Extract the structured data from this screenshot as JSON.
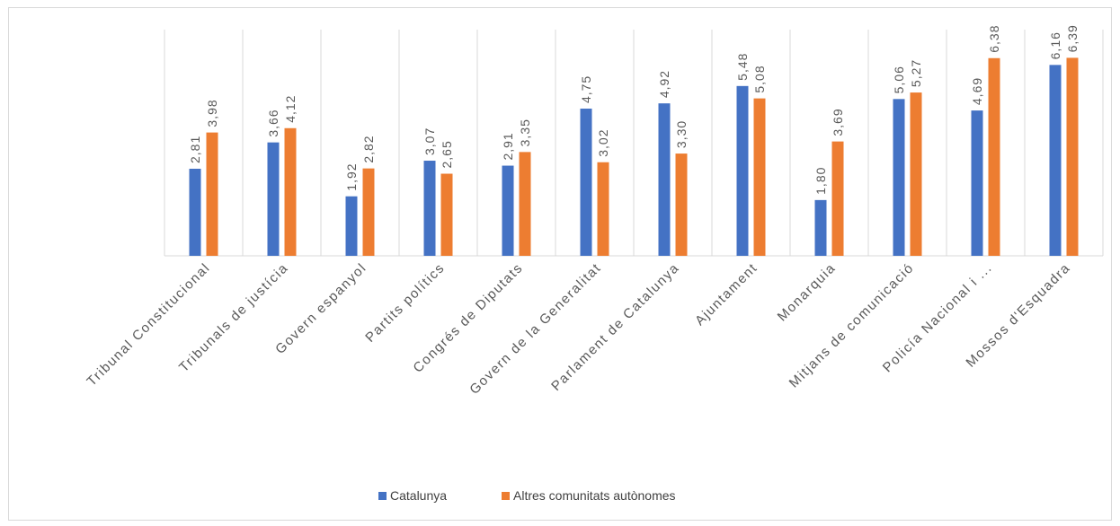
{
  "chart_data": {
    "type": "bar",
    "title": "",
    "xlabel": "",
    "ylabel": "",
    "ylim": [
      0,
      7.3
    ],
    "grid": "vertical separators",
    "legend_position": "bottom",
    "colors": {
      "Catalunya": "#4472c4",
      "Altres comunitats autònomes": "#ed7d31"
    },
    "categories": [
      "Tribunal Constitucional",
      "Tribunals de justícia",
      "Govern espanyol",
      "Partits polítics",
      "Congrés de Diputats",
      "Govern de la Generalitat",
      "Parlament de Catalunya",
      "Ajuntament",
      "Monarquia",
      "Mitjans de comunicació",
      "Policía Nacional i ...",
      "Mossos d'Esquadra"
    ],
    "series": [
      {
        "name": "Catalunya",
        "values": [
          2.81,
          3.66,
          1.92,
          3.07,
          2.91,
          4.75,
          4.92,
          5.48,
          1.8,
          5.06,
          4.69,
          6.16
        ],
        "labels": [
          "2,81",
          "3,66",
          "1,92",
          "3,07",
          "2,91",
          "4,75",
          "4,92",
          "5,48",
          "1,80",
          "5,06",
          "4,69",
          "6,16"
        ]
      },
      {
        "name": "Altres comunitats autònomes",
        "values": [
          3.98,
          4.12,
          2.82,
          2.65,
          3.35,
          3.02,
          3.3,
          5.08,
          3.69,
          5.27,
          6.38,
          6.39
        ],
        "labels": [
          "3,98",
          "4,12",
          "2,82",
          "2,65",
          "3,35",
          "3,02",
          "3,30",
          "5,08",
          "3,69",
          "5,27",
          "6,38",
          "6,39"
        ]
      }
    ]
  }
}
